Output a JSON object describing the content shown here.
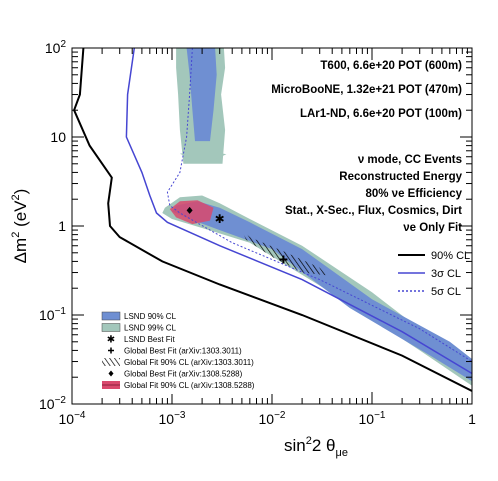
{
  "chart_data": {
    "type": "contour",
    "x_scale": "log",
    "y_scale": "log",
    "xlim": [
      0.0001,
      1
    ],
    "ylim": [
      0.01,
      100
    ],
    "xlabel": "sin²2 θμe",
    "ylabel": "Δm² (eV²)",
    "x_ticks": [
      {
        "value": 0.0001,
        "mant": "10",
        "exp": "−4"
      },
      {
        "value": 0.001,
        "mant": "10",
        "exp": "−3"
      },
      {
        "value": 0.01,
        "mant": "10",
        "exp": "−2"
      },
      {
        "value": 0.1,
        "mant": "10",
        "exp": "−1"
      },
      {
        "value": 1,
        "mant": "1",
        "exp": ""
      }
    ],
    "y_ticks": [
      {
        "value": 0.01,
        "mant": "10",
        "exp": "−2"
      },
      {
        "value": 0.1,
        "mant": "10",
        "exp": "−1"
      },
      {
        "value": 1,
        "mant": "1",
        "exp": ""
      },
      {
        "value": 10,
        "mant": "10",
        "exp": ""
      },
      {
        "value": 100,
        "mant": "10",
        "exp": "2"
      }
    ],
    "annotations": {
      "t600": "T600, 6.6e+20 POT (600m)",
      "microboone": "MicroBooNE, 1.32e+21 POT (470m)",
      "lar1nd": "LAr1-ND, 6.6e+20 POT (100m)",
      "mode": "ν mode, CC Events",
      "energy": "Reconstructed Energy",
      "efficiency": "80% νe Efficiency",
      "systematics": "Stat., X-Sec., Flux, Cosmics, Dirt",
      "fit": "νe Only Fit"
    },
    "legend_sensitivity": [
      {
        "label": "90% CL",
        "color": "#000000",
        "dash": "none"
      },
      {
        "label": "3σ CL",
        "color": "#4646d2",
        "dash": "none"
      },
      {
        "label": "5σ CL",
        "color": "#4646d2",
        "dash": "2,2"
      }
    ],
    "legend_regions": [
      {
        "label": "LSND 90% CL",
        "kind": "box",
        "color": "#6f8fd2"
      },
      {
        "label": "LSND 99% CL",
        "kind": "box",
        "color": "#a3c7bb"
      },
      {
        "label": "LSND Best Fit",
        "kind": "star"
      },
      {
        "label": "Global Best Fit (arXiv:1303.3011)",
        "kind": "plus"
      },
      {
        "label": "Global Fit 90% CL (arXiv:1303.3011)",
        "kind": "hatch"
      },
      {
        "label": "Global Best Fit (arXiv:1308.5288)",
        "kind": "dot"
      },
      {
        "label": "Global Fit 90% CL (arXiv:1308.5288)",
        "kind": "red"
      }
    ],
    "curves": {
      "cl90": [
        [
          0.00013,
          100
        ],
        [
          0.00012,
          30
        ],
        [
          0.000105,
          20
        ],
        [
          0.00015,
          8
        ],
        [
          0.00025,
          3.5
        ],
        [
          0.00023,
          1.8
        ],
        [
          0.00024,
          1.0
        ],
        [
          0.0003,
          0.75
        ],
        [
          0.0008,
          0.4
        ],
        [
          0.003,
          0.22
        ],
        [
          0.02,
          0.1
        ],
        [
          0.2,
          0.035
        ],
        [
          1,
          0.014
        ]
      ],
      "sigma3": [
        [
          0.00042,
          100
        ],
        [
          0.00036,
          30
        ],
        [
          0.00035,
          10
        ],
        [
          0.0005,
          4
        ],
        [
          0.0006,
          2.2
        ],
        [
          0.0007,
          1.4
        ],
        [
          0.0009,
          1.1
        ],
        [
          0.003,
          0.6
        ],
        [
          0.02,
          0.25
        ],
        [
          0.2,
          0.065
        ],
        [
          1,
          0.022
        ]
      ],
      "sigma5": [
        [
          0.0016,
          100
        ],
        [
          0.0015,
          30
        ],
        [
          0.0014,
          10
        ],
        [
          0.0012,
          4
        ],
        [
          0.0009,
          2.4
        ],
        [
          0.00095,
          1.7
        ],
        [
          0.0012,
          1.4
        ],
        [
          0.004,
          0.65
        ],
        [
          0.03,
          0.25
        ],
        [
          0.3,
          0.07
        ],
        [
          1,
          0.03
        ]
      ]
    },
    "regions": {
      "lsnd99": [
        [
          0.00085,
          1.6
        ],
        [
          0.0012,
          2.1
        ],
        [
          0.002,
          2.2
        ],
        [
          0.003,
          1.8
        ],
        [
          0.006,
          1.2
        ],
        [
          0.02,
          0.6
        ],
        [
          0.1,
          0.18
        ],
        [
          0.5,
          0.045
        ],
        [
          1,
          0.03
        ],
        [
          1,
          0.016
        ],
        [
          0.3,
          0.04
        ],
        [
          0.05,
          0.15
        ],
        [
          0.006,
          0.65
        ],
        [
          0.002,
          0.95
        ],
        [
          0.001,
          1.2
        ],
        [
          0.0008,
          1.4
        ]
      ],
      "lsnd90": [
        [
          0.0011,
          1.7
        ],
        [
          0.0018,
          1.9
        ],
        [
          0.003,
          1.6
        ],
        [
          0.006,
          1.1
        ],
        [
          0.02,
          0.55
        ],
        [
          0.1,
          0.15
        ],
        [
          0.6,
          0.05
        ],
        [
          1,
          0.032
        ],
        [
          1,
          0.018
        ],
        [
          0.4,
          0.034
        ],
        [
          0.06,
          0.12
        ],
        [
          0.01,
          0.55
        ],
        [
          0.003,
          0.9
        ],
        [
          0.0015,
          1.2
        ],
        [
          0.001,
          1.45
        ]
      ],
      "lsnd99_top": [
        [
          0.0011,
          100
        ],
        [
          0.0033,
          100
        ],
        [
          0.0034,
          60
        ],
        [
          0.0031,
          30
        ],
        [
          0.0034,
          12
        ],
        [
          0.0032,
          5
        ],
        [
          0.0013,
          5
        ],
        [
          0.0012,
          12
        ],
        [
          0.00115,
          30
        ],
        [
          0.0011,
          60
        ]
      ],
      "lsnd90_top": [
        [
          0.0014,
          100
        ],
        [
          0.0027,
          100
        ],
        [
          0.0028,
          50
        ],
        [
          0.0026,
          20
        ],
        [
          0.0024,
          9
        ],
        [
          0.0017,
          9
        ],
        [
          0.0016,
          20
        ],
        [
          0.0015,
          50
        ]
      ],
      "blob99": [
        [
          0.0012,
          6.5
        ],
        [
          0.002,
          7.2
        ],
        [
          0.0035,
          6.4
        ],
        [
          0.0025,
          5.4
        ],
        [
          0.0015,
          5.8
        ]
      ],
      "global1308": [
        [
          0.00095,
          1.55
        ],
        [
          0.0012,
          1.9
        ],
        [
          0.0018,
          1.95
        ],
        [
          0.0026,
          1.6
        ],
        [
          0.0024,
          1.15
        ],
        [
          0.0016,
          1.05
        ],
        [
          0.0011,
          1.25
        ]
      ],
      "global1303": [
        [
          0.005,
          0.9
        ],
        [
          0.006,
          0.75
        ],
        [
          0.013,
          0.52
        ],
        [
          0.03,
          0.34
        ],
        [
          0.035,
          0.28
        ],
        [
          0.02,
          0.3
        ],
        [
          0.01,
          0.45
        ],
        [
          0.0055,
          0.7
        ]
      ]
    },
    "points": {
      "lsnd_best": [
        0.003,
        1.2
      ],
      "global_best_1303": [
        0.013,
        0.42
      ],
      "global_best_1308": [
        0.0015,
        1.5
      ]
    }
  }
}
